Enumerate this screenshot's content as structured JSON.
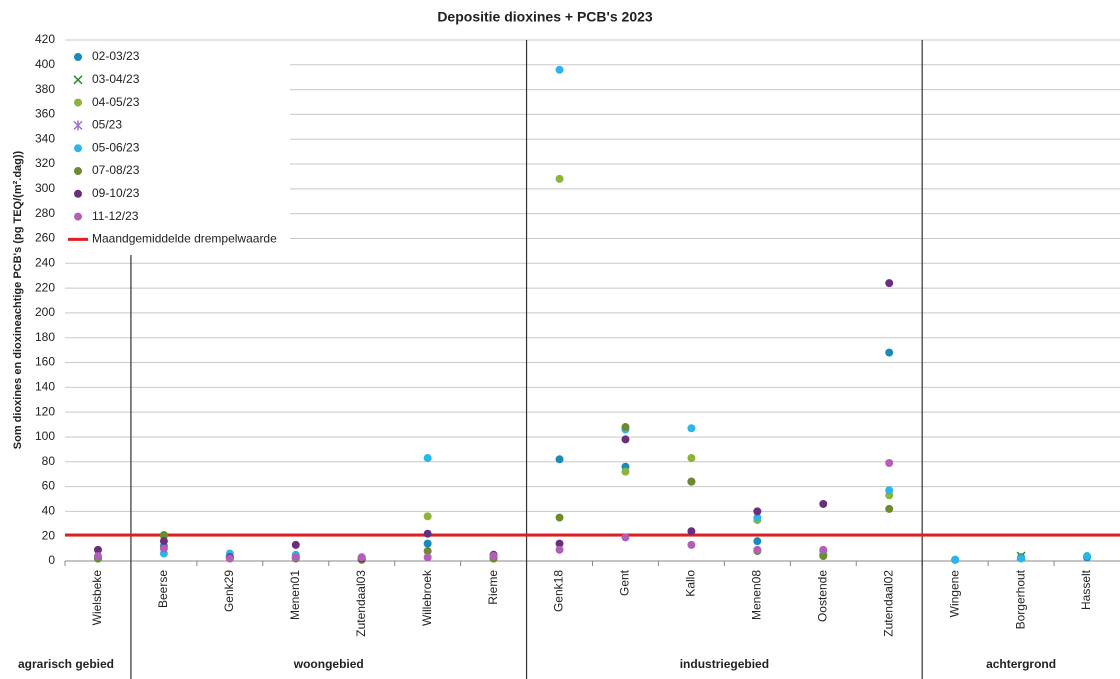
{
  "chart_data": {
    "type": "scatter",
    "title": "Depositie dioxines + PCB's 2023",
    "y_label": "Som dioxines en dioxineachtige PCB's (pg TEQ/(m².dag))",
    "categories": [
      "Wielsbeke",
      "Beerse",
      "Genk29",
      "Menen01",
      "Zutendaal03",
      "Willebroek",
      "Rieme",
      "Genk18",
      "Gent",
      "Kallo",
      "Menen08",
      "Oostende",
      "Zutendaal02",
      "Wingene",
      "Borgerhout",
      "Hasselt"
    ],
    "region_labels": [
      "agrarisch gebied",
      "woongebied",
      "industriegebied",
      "achtergrond"
    ],
    "ylim": [
      0,
      420
    ],
    "yticks": [
      0,
      20,
      40,
      60,
      80,
      100,
      120,
      140,
      160,
      180,
      200,
      220,
      240,
      260,
      280,
      300,
      320,
      340,
      360,
      380,
      400,
      420
    ],
    "grid": true,
    "series": [
      {
        "name": "02-03/23",
        "color": "#1a8bb9",
        "marker": "circle",
        "values": [
          3,
          12,
          3,
          3,
          2,
          14,
          3,
          82,
          76,
          64,
          16,
          5,
          168,
          1,
          3,
          3
        ]
      },
      {
        "name": "03-04/23",
        "color": "#2e8b2e",
        "marker": "x",
        "values": [
          null,
          null,
          null,
          null,
          null,
          null,
          null,
          null,
          null,
          null,
          null,
          null,
          null,
          null,
          4,
          null
        ]
      },
      {
        "name": "04-05/23",
        "color": "#8db33a",
        "marker": "circle",
        "values": [
          2,
          20,
          2,
          2,
          1,
          36,
          2,
          308,
          72,
          83,
          33,
          5,
          53,
          1,
          null,
          null
        ]
      },
      {
        "name": "05/23",
        "color": "#a070c8",
        "marker": "star",
        "values": [
          null,
          null,
          null,
          null,
          null,
          null,
          null,
          null,
          null,
          null,
          null,
          null,
          null,
          null,
          null,
          null
        ]
      },
      {
        "name": "05-06/23",
        "color": "#2bb5e8",
        "marker": "circle",
        "values": [
          2,
          6,
          6,
          5,
          3,
          83,
          3,
          396,
          106,
          107,
          35,
          8,
          57,
          1,
          2,
          4
        ]
      },
      {
        "name": "07-08/23",
        "color": "#6b8c2e",
        "marker": "circle",
        "values": [
          2,
          21,
          3,
          2,
          1,
          8,
          2,
          35,
          108,
          64,
          8,
          4,
          42,
          null,
          null,
          null
        ]
      },
      {
        "name": "09-10/23",
        "color": "#6a2e80",
        "marker": "circle",
        "values": [
          9,
          16,
          3,
          13,
          2,
          22,
          5,
          14,
          98,
          24,
          40,
          46,
          224,
          null,
          null,
          null
        ]
      },
      {
        "name": "11-12/23",
        "color": "#b25fb7",
        "marker": "circle",
        "values": [
          4,
          10,
          2,
          3,
          3,
          3,
          4,
          9,
          19,
          13,
          9,
          9,
          79,
          null,
          null,
          null
        ]
      }
    ],
    "threshold": {
      "name": "Maandgemiddelde drempelwaarde",
      "value": 21,
      "color": "#e02020"
    }
  }
}
